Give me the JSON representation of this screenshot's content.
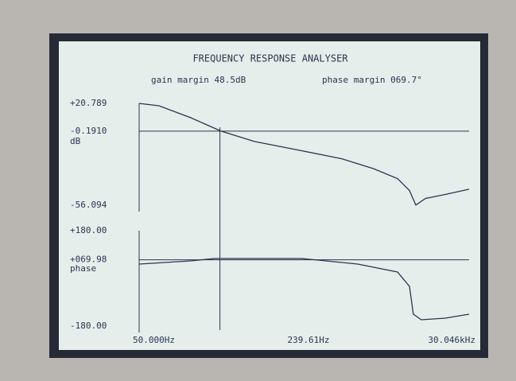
{
  "title": "FREQUENCY RESPONSE ANALYSER",
  "gain_margin": "gain margin 48.5dB",
  "phase_margin": "phase margin 069.7°",
  "cursor": {
    "value": 239.61,
    "label": "239.61Hz"
  },
  "chart_data": [
    {
      "type": "line",
      "ylabel": "dB",
      "log_x": true,
      "xlim": [
        50,
        30046
      ],
      "ylim": [
        -56.094,
        20.789
      ],
      "yticks": [
        {
          "value": 20.789,
          "label": "+20.789"
        },
        {
          "value": -0.191,
          "label": "-0.1910"
        },
        {
          "value": -56.094,
          "label": "-56.094"
        }
      ],
      "grid": true,
      "x": [
        50,
        73.5,
        136,
        245,
        468,
        1180,
        2550,
        4720,
        7500,
        9450,
        10700,
        12900,
        18900,
        30046
      ],
      "series": [
        {
          "color": "#2b3550",
          "values": [
            20.8,
            19,
            10,
            -0.2,
            -8,
            -15,
            -21,
            -28.5,
            -36,
            -45,
            -56,
            -51,
            -48,
            -44
          ]
        }
      ]
    },
    {
      "type": "line",
      "ylabel": "phase",
      "log_x": true,
      "xlim": [
        50,
        30046
      ],
      "xticks": [
        {
          "value": 50,
          "label": "50.000Hz"
        },
        {
          "value": 30046,
          "label": "30.046kHz"
        }
      ],
      "ylim": [
        -180,
        180
      ],
      "yticks": [
        {
          "value": 180,
          "label": "+180.00"
        },
        {
          "value": 69.98,
          "label": "+069.98"
        },
        {
          "value": -180,
          "label": "-180.00"
        }
      ],
      "grid": true,
      "x": [
        50,
        136,
        216,
        343,
        1180,
        3470,
        7500,
        9450,
        10200,
        11900,
        18900,
        30046
      ],
      "series": [
        {
          "color": "#2b3550",
          "values": [
            54,
            66,
            75,
            75,
            75,
            54,
            24,
            -30,
            -135,
            -156,
            -150,
            -135
          ]
        }
      ]
    }
  ]
}
